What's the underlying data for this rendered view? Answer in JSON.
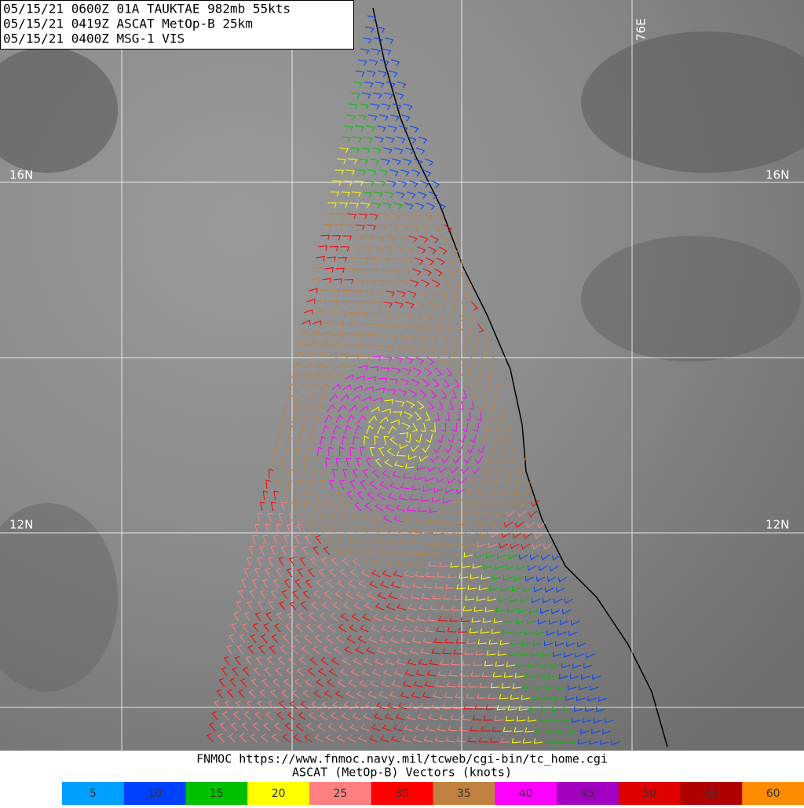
{
  "header": {
    "lines": [
      "05/15/21 0600Z  01A TAUKTAE 982mb 55kts",
      "05/15/21 0419Z  ASCAT MetOp-B 25km",
      "05/15/21 0400Z  MSG-1 VIS"
    ]
  },
  "grid_labels": {
    "lat_16_left": "16N",
    "lat_16_right": "16N",
    "lat_12_left": "12N",
    "lat_12_right": "12N",
    "lon_76": "76E"
  },
  "footer": {
    "source": "FNMOC https://www.fnmoc.navy.mil/tcweb/cgi-bin/tc_home.cgi",
    "caption": "ASCAT (MetOp-B) Vectors (knots)"
  },
  "legend": [
    {
      "value": 5,
      "color": "#00a0ff"
    },
    {
      "value": 10,
      "color": "#0040ff"
    },
    {
      "value": 15,
      "color": "#00c000"
    },
    {
      "value": 20,
      "color": "#ffff00"
    },
    {
      "value": 25,
      "color": "#ff8080"
    },
    {
      "value": 30,
      "color": "#ff0000"
    },
    {
      "value": 35,
      "color": "#c08040"
    },
    {
      "value": 40,
      "color": "#ff00ff"
    },
    {
      "value": 45,
      "color": "#a000c0"
    },
    {
      "value": 50,
      "color": "#e00000"
    },
    {
      "value": 55,
      "color": "#b00000"
    },
    {
      "value": 60,
      "color": "#ff8c00"
    }
  ]
}
